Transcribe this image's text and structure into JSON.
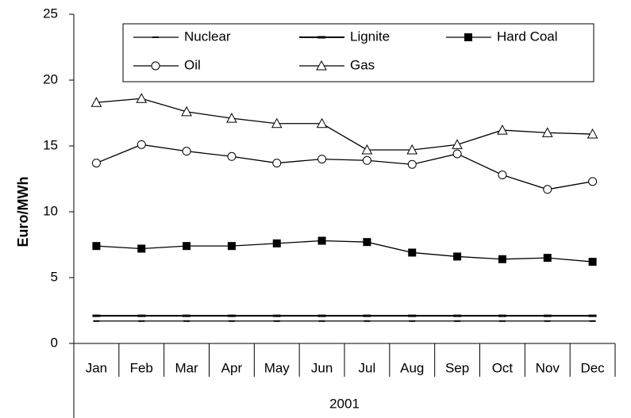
{
  "chart_data": {
    "type": "line",
    "y_label": "Euro/MWh",
    "x_group_label": "2001",
    "categories": [
      "Jan",
      "Feb",
      "Mar",
      "Apr",
      "May",
      "Jun",
      "Jul",
      "Aug",
      "Sep",
      "Oct",
      "Nov",
      "Dec"
    ],
    "series": [
      {
        "name": "Nuclear",
        "color": "#000000",
        "marker": "dash",
        "values": [
          1.7,
          1.7,
          1.7,
          1.7,
          1.7,
          1.7,
          1.7,
          1.7,
          1.7,
          1.7,
          1.7,
          1.7
        ]
      },
      {
        "name": "Lignite",
        "color": "#000000",
        "marker": "bar",
        "values": [
          2.1,
          2.1,
          2.1,
          2.1,
          2.1,
          2.1,
          2.1,
          2.1,
          2.1,
          2.1,
          2.1,
          2.1
        ]
      },
      {
        "name": "Hard Coal",
        "color": "#000000",
        "marker": "square",
        "values": [
          7.4,
          7.2,
          7.4,
          7.4,
          7.6,
          7.8,
          7.7,
          6.9,
          6.6,
          6.4,
          6.5,
          6.2
        ]
      },
      {
        "name": "Oil",
        "color": "#000000",
        "marker": "circle",
        "values": [
          13.7,
          15.1,
          14.6,
          14.2,
          13.7,
          14.0,
          13.9,
          13.6,
          14.4,
          12.8,
          11.7,
          12.3
        ]
      },
      {
        "name": "Gas",
        "color": "#000000",
        "marker": "triangle",
        "values": [
          18.3,
          18.6,
          17.6,
          17.1,
          16.7,
          16.7,
          14.7,
          14.7,
          15.1,
          16.2,
          16.0,
          15.9
        ]
      }
    ],
    "ylim": [
      0,
      25
    ],
    "yticks": [
      0,
      5,
      10,
      15,
      20,
      25
    ],
    "grid": false
  }
}
